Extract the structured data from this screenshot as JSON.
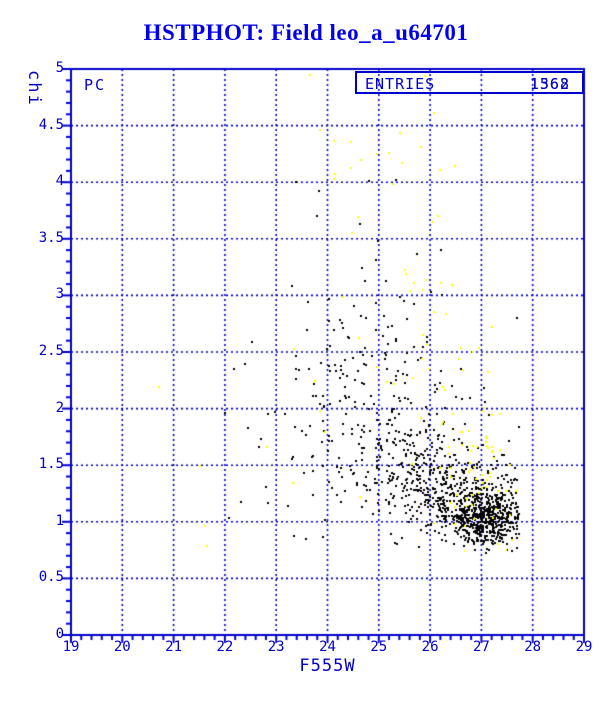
{
  "page": {
    "title": "HSTPHOT: Field leo_a_u64701"
  },
  "colors": {
    "title": "#0000EE",
    "axis": "#0000CC",
    "grid": "#0000CC",
    "background": "#FFFFFF",
    "black_points": "#000000",
    "yellow_points": "#FFFF00"
  },
  "plot": {
    "detector_label": "PC",
    "entries_label": "ENTRIES",
    "entries_values": [
      "1368",
      "1562"
    ],
    "y_axis_label": "chi",
    "x_axis_label": "F555W",
    "y_tick_labels": [
      "0",
      "0.5",
      "1",
      "1.5",
      "2",
      "2.5",
      "3",
      "3.5",
      "4",
      "4.5",
      "5"
    ],
    "x_tick_labels": [
      "19",
      "20",
      "21",
      "22",
      "23",
      "24",
      "25",
      "26",
      "27",
      "28",
      "29"
    ]
  },
  "chart_data": {
    "type": "scatter",
    "title": "HSTPHOT: Field leo_a_u64701",
    "xlabel": "F555W",
    "ylabel": "chi",
    "xlim": [
      19,
      29
    ],
    "ylim": [
      0,
      5
    ],
    "x_major_step": 1,
    "x_minor_step": 0.2,
    "y_major_step": 0.5,
    "y_minor_step": 0.1,
    "grid": "dashed blue lines at every 1.0 in x and every 0.5 in y",
    "legend_position": "none",
    "entries_counts": [
      1368,
      1562
    ],
    "marker_px": 2,
    "seed": 20240612,
    "bounds": {
      "xmin": 19.08,
      "xmax": 27.72,
      "ymin": 0.73,
      "ymax": 4.98
    },
    "series": [
      {
        "name": "pc-detections-black",
        "color": "#000000",
        "clusters": [
          {
            "n": 480,
            "cx": 27.05,
            "cy": 1.03,
            "sx": 0.33,
            "sy": 0.12
          },
          {
            "n": 300,
            "cx": 26.45,
            "cy": 1.25,
            "sx": 0.55,
            "sy": 0.18
          },
          {
            "n": 200,
            "cx": 25.6,
            "cy": 1.5,
            "sx": 0.8,
            "sy": 0.28
          },
          {
            "n": 130,
            "cx": 25.0,
            "cy": 1.95,
            "sx": 0.85,
            "sy": 0.4
          },
          {
            "n": 55,
            "cx": 24.9,
            "cy": 2.6,
            "sx": 0.9,
            "sy": 0.45
          },
          {
            "n": 15,
            "cx": 24.8,
            "cy": 3.4,
            "sx": 0.9,
            "sy": 0.5
          },
          {
            "n": 18,
            "cx": 23.1,
            "cy": 1.5,
            "sx": 0.55,
            "sy": 0.45
          }
        ],
        "outliers": [
          [
            22.15,
            2.36
          ],
          [
            21.98,
            1.97
          ],
          [
            22.3,
            1.18
          ],
          [
            22.5,
            2.6
          ],
          [
            23.6,
            2.95
          ]
        ]
      },
      {
        "name": "pc-detections-yellow",
        "color": "#FFFF00",
        "clusters": [
          {
            "n": 55,
            "cx": 26.9,
            "cy": 1.4,
            "sx": 0.4,
            "sy": 0.3
          },
          {
            "n": 30,
            "cx": 26.3,
            "cy": 2.2,
            "sx": 0.45,
            "sy": 0.5
          },
          {
            "n": 22,
            "cx": 25.2,
            "cy": 3.5,
            "sx": 0.8,
            "sy": 0.75
          },
          {
            "n": 10,
            "cx": 24.3,
            "cy": 2.2,
            "sx": 0.9,
            "sy": 0.5
          }
        ],
        "outliers": [
          [
            20.7,
            2.2
          ],
          [
            21.5,
            1.5
          ],
          [
            21.6,
            0.97
          ],
          [
            23.64,
            4.96
          ],
          [
            24.54,
            4.97
          ],
          [
            24.44,
            4.36
          ],
          [
            25.43,
            4.18
          ],
          [
            24.13,
            4.08
          ],
          [
            25.26,
            3.99
          ],
          [
            26.05,
            4.62
          ],
          [
            26.4,
            3.1
          ],
          [
            23.3,
            1.35
          ]
        ]
      }
    ]
  }
}
